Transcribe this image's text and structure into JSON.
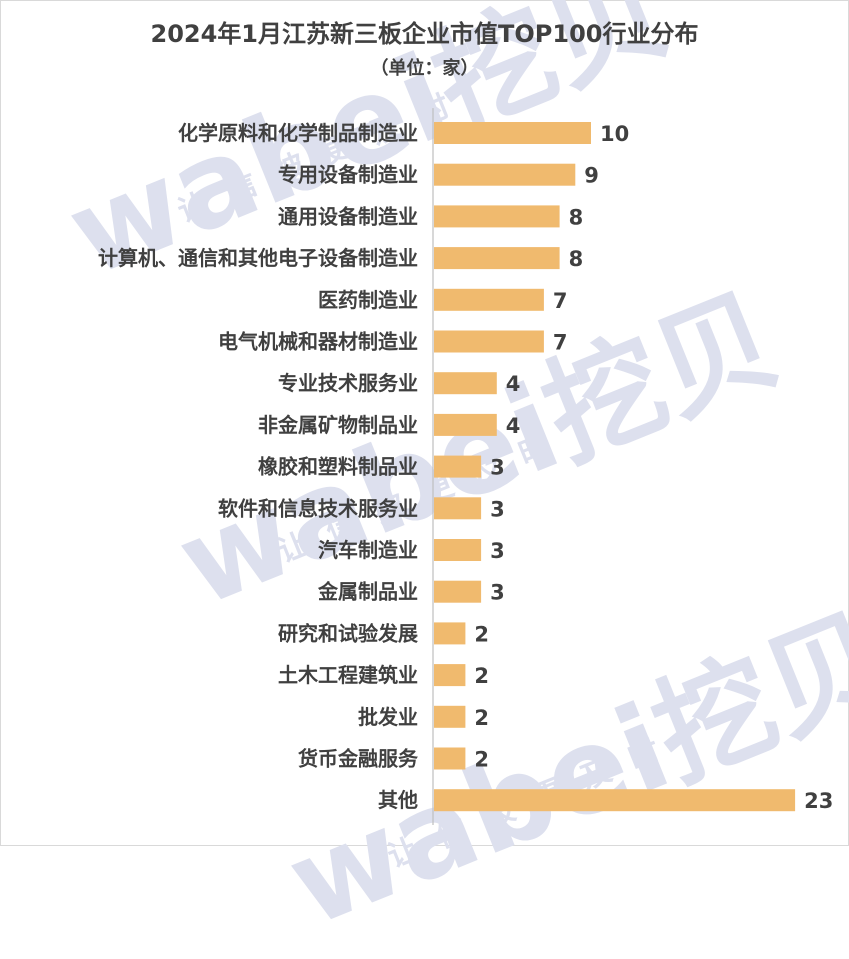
{
  "chart_data": {
    "type": "bar",
    "orientation": "horizontal",
    "title": "2024年1月江苏新三板企业市值TOP100行业分布",
    "subtitle": "（单位：家）",
    "categories": [
      "化学原料和化学制品制造业",
      "专用设备制造业",
      "通用设备制造业",
      "计算机、通信和其他电子设备制造业",
      "医药制造业",
      "电气机械和器材制造业",
      "专业技术服务业",
      "非金属矿物制品业",
      "橡胶和塑料制品业",
      "软件和信息技术服务业",
      "汽车制造业",
      "金属制品业",
      "研究和试验发展",
      "土木工程建筑业",
      "批发业",
      "货币金融服务",
      "其他"
    ],
    "values": [
      10,
      9,
      8,
      8,
      7,
      7,
      4,
      4,
      3,
      3,
      3,
      3,
      2,
      2,
      2,
      2,
      23
    ],
    "data_labels": [
      "10",
      "9",
      "8",
      "8",
      "7",
      "7",
      "4",
      "4",
      "3",
      "3",
      "3",
      "3",
      "2",
      "2",
      "2",
      "2",
      "23"
    ],
    "bar_color": "#f0ba6e",
    "axis_color": "#bfbfbf",
    "grid": false,
    "legend": "none"
  },
  "watermark": {
    "brand": "wabei挖贝",
    "slogan": "让信披更及时"
  }
}
